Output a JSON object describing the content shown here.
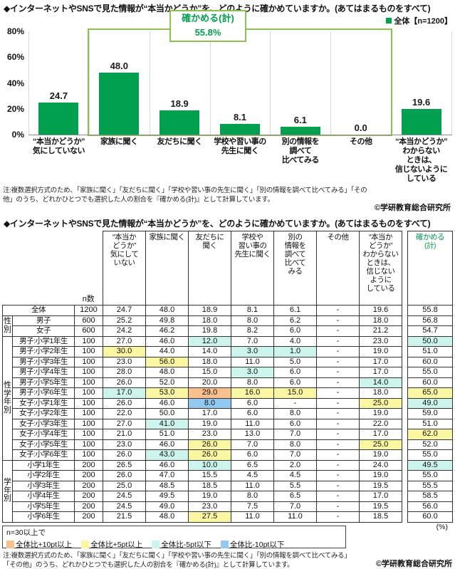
{
  "page": {
    "title": "◆インターネットやSNSで見た情報が“本当かどうか”を、どのように確かめていますか。(あてはまるものをすべて)",
    "note": "注:複数選択方式のため、「家族に聞く」「友だちに聞く」「学校や習い事の先生に聞く」「別の情報を調べて比べてみる」「その他」のうち、どれかひとつでも選択した人の割合を『確かめる(計)』として計算しています。",
    "copyright": "©学研教育総合研究所",
    "percent_label": "(%)"
  },
  "chart_data": {
    "type": "bar",
    "title": "◆インターネットやSNSで見た情報が“本当かどうか”を、どのように確かめていますか。(あてはまるものをすべて)",
    "legend": "全体【n=1200】",
    "categories": [
      "“本当かどうか”\n気にしていない",
      "家族に聞く",
      "友だちに聞く",
      "学校や習い事の\n先生に聞く",
      "別の情報を\n調べて\n比べてみる",
      "その他",
      "“本当かどうか”\nわからない\nときは、\n信じないように\nしている"
    ],
    "values": [
      24.7,
      48.0,
      18.9,
      8.1,
      6.1,
      0.0,
      19.6
    ],
    "value_labels": [
      "24.7",
      "48.0",
      "18.9",
      "8.1",
      "6.1",
      "0.0",
      "19.6"
    ],
    "ylim": [
      0,
      80
    ],
    "yticks": [
      80,
      60,
      40,
      20,
      0
    ],
    "grid": false,
    "legend_position": "top-right",
    "annotation": {
      "label": "確かめる(計)",
      "value": "55.8%",
      "span_start": 1,
      "span_count": 5
    },
    "bar_color": "#00A04E",
    "box_color": "#8CC152"
  },
  "table": {
    "n_header": "n数",
    "columns": [
      "“本当か\nどうか”\n気にして\nいない",
      "家族に聞く",
      "友だちに\n聞く",
      "学校や\n習い事の\n先生に聞く",
      "別の\n情報を\n調べて\n比べて\nみる",
      "その他",
      "“本当か\nどうか”\nわからない\nときは、\n信じない\nように\nしている",
      "確かめる\n(計)"
    ],
    "groups": [
      {
        "label": "",
        "rows": [
          {
            "label": "全体",
            "n": "1200",
            "values": [
              "24.7",
              "48.0",
              "18.9",
              "8.1",
              "6.1",
              "-",
              "19.6",
              "55.8"
            ],
            "hl": [
              null,
              null,
              null,
              null,
              null,
              null,
              null,
              null
            ]
          }
        ]
      },
      {
        "label": "性別",
        "rows": [
          {
            "label": "男子",
            "n": "600",
            "values": [
              "25.2",
              "49.8",
              "18.0",
              "8.0",
              "6.2",
              "-",
              "18.0",
              "56.8"
            ],
            "hl": [
              null,
              null,
              null,
              null,
              null,
              null,
              null,
              null
            ]
          },
          {
            "label": "女子",
            "n": "600",
            "values": [
              "24.2",
              "46.2",
              "19.8",
              "8.2",
              "6.0",
              "-",
              "21.2",
              "54.7"
            ],
            "hl": [
              null,
              null,
              null,
              null,
              null,
              null,
              null,
              null
            ]
          }
        ]
      },
      {
        "label": "性学年別",
        "rows": [
          {
            "label": "男子:小学1年生",
            "n": "100",
            "values": [
              "27.0",
              "46.0",
              "12.0",
              "7.0",
              "4.0",
              "-",
              "23.0",
              "50.0"
            ],
            "hl": [
              null,
              null,
              "c",
              null,
              null,
              null,
              null,
              "c"
            ]
          },
          {
            "label": "男子:小学2年生",
            "n": "100",
            "values": [
              "30.0",
              "44.0",
              "14.0",
              "3.0",
              "1.0",
              "-",
              "19.0",
              "51.0"
            ],
            "hl": [
              "y",
              null,
              null,
              "c",
              "c",
              null,
              null,
              null
            ]
          },
          {
            "label": "男子:小学3年生",
            "n": "100",
            "values": [
              "23.0",
              "56.0",
              "18.0",
              "11.0",
              "5.0",
              "-",
              "17.0",
              "60.0"
            ],
            "hl": [
              null,
              "y",
              null,
              null,
              null,
              null,
              null,
              null
            ]
          },
          {
            "label": "男子:小学4年生",
            "n": "100",
            "values": [
              "28.0",
              "48.0",
              "15.0",
              "3.0",
              "6.0",
              "-",
              "17.0",
              "55.0"
            ],
            "hl": [
              null,
              null,
              null,
              "c",
              null,
              null,
              null,
              null
            ]
          },
          {
            "label": "男子:小学5年生",
            "n": "100",
            "values": [
              "26.0",
              "52.0",
              "20.0",
              "8.0",
              "6.0",
              "-",
              "14.0",
              "60.0"
            ],
            "hl": [
              null,
              null,
              null,
              null,
              null,
              null,
              "c",
              null
            ]
          },
          {
            "label": "男子:小学6年生",
            "n": "100",
            "values": [
              "17.0",
              "53.0",
              "29.0",
              "16.0",
              "15.0",
              "-",
              "18.0",
              "65.0"
            ],
            "hl": [
              "c",
              "y",
              "o",
              "y",
              "y",
              null,
              null,
              "y"
            ]
          },
          {
            "label": "女子:小学1年生",
            "n": "100",
            "values": [
              "26.0",
              "46.0",
              "8.0",
              "6.0",
              "-",
              "-",
              "25.0",
              "49.0"
            ],
            "hl": [
              null,
              null,
              "b",
              null,
              null,
              null,
              "y",
              "c"
            ]
          },
          {
            "label": "女子:小学2年生",
            "n": "100",
            "values": [
              "22.0",
              "50.0",
              "17.0",
              "6.0",
              "8.0",
              "-",
              "19.0",
              "59.0"
            ],
            "hl": [
              null,
              null,
              null,
              null,
              null,
              null,
              null,
              null
            ]
          },
          {
            "label": "女子:小学3年生",
            "n": "100",
            "values": [
              "27.0",
              "41.0",
              "19.0",
              "11.0",
              "6.0",
              "-",
              "22.0",
              "51.0"
            ],
            "hl": [
              null,
              "c",
              null,
              null,
              null,
              null,
              null,
              null
            ]
          },
          {
            "label": "女子:小学4年生",
            "n": "100",
            "values": [
              "21.0",
              "51.0",
              "23.0",
              "13.0",
              "7.0",
              "-",
              "17.0",
              "62.0"
            ],
            "hl": [
              null,
              null,
              null,
              null,
              null,
              null,
              null,
              "y"
            ]
          },
          {
            "label": "女子:小学5年生",
            "n": "100",
            "values": [
              "23.0",
              "46.0",
              "26.0",
              "7.0",
              "8.0",
              "-",
              "25.0",
              "52.0"
            ],
            "hl": [
              null,
              null,
              "y",
              null,
              null,
              null,
              "y",
              null
            ]
          },
          {
            "label": "女子:小学6年生",
            "n": "100",
            "values": [
              "26.0",
              "43.0",
              "26.0",
              "6.0",
              "7.0",
              "-",
              "19.0",
              "55.0"
            ],
            "hl": [
              null,
              "c",
              "y",
              null,
              null,
              null,
              null,
              null
            ]
          }
        ]
      },
      {
        "label": "学年別",
        "rows": [
          {
            "label": "小学1年生",
            "n": "200",
            "values": [
              "26.5",
              "46.0",
              "10.0",
              "6.5",
              "2.0",
              "-",
              "24.0",
              "49.5"
            ],
            "hl": [
              null,
              null,
              "c",
              null,
              null,
              null,
              null,
              "c"
            ]
          },
          {
            "label": "小学2年生",
            "n": "200",
            "values": [
              "26.0",
              "47.0",
              "15.5",
              "4.5",
              "4.5",
              "-",
              "19.0",
              "55.0"
            ],
            "hl": [
              null,
              null,
              null,
              null,
              null,
              null,
              null,
              null
            ]
          },
          {
            "label": "小学3年生",
            "n": "200",
            "values": [
              "25.0",
              "48.5",
              "18.5",
              "11.0",
              "5.5",
              "-",
              "19.5",
              "55.5"
            ],
            "hl": [
              null,
              null,
              null,
              null,
              null,
              null,
              null,
              null
            ]
          },
          {
            "label": "小学4年生",
            "n": "200",
            "values": [
              "24.5",
              "49.5",
              "19.0",
              "8.0",
              "6.5",
              "-",
              "17.0",
              "58.5"
            ],
            "hl": [
              null,
              null,
              null,
              null,
              null,
              null,
              null,
              null
            ]
          },
          {
            "label": "小学5年生",
            "n": "200",
            "values": [
              "24.5",
              "49.0",
              "23.0",
              "7.5",
              "7.0",
              "-",
              "19.5",
              "56.0"
            ],
            "hl": [
              null,
              null,
              null,
              null,
              null,
              null,
              null,
              null
            ]
          },
          {
            "label": "小学6年生",
            "n": "200",
            "values": [
              "21.5",
              "48.0",
              "27.5",
              "11.0",
              "11.0",
              "-",
              "18.5",
              "60.0"
            ],
            "hl": [
              null,
              null,
              "y",
              null,
              null,
              null,
              null,
              null
            ]
          }
        ]
      }
    ]
  },
  "legend_box": {
    "title": "n=30以上で",
    "items": [
      {
        "label": "全体比+10pt以上",
        "color": "#FAC08D"
      },
      {
        "label": "全体比+5pt以上",
        "color": "#FBF6A2"
      },
      {
        "label": "全体比-5pt以下",
        "color": "#CDF4EC"
      },
      {
        "label": "全体比-10pt以下",
        "color": "#93C8F0"
      }
    ]
  }
}
